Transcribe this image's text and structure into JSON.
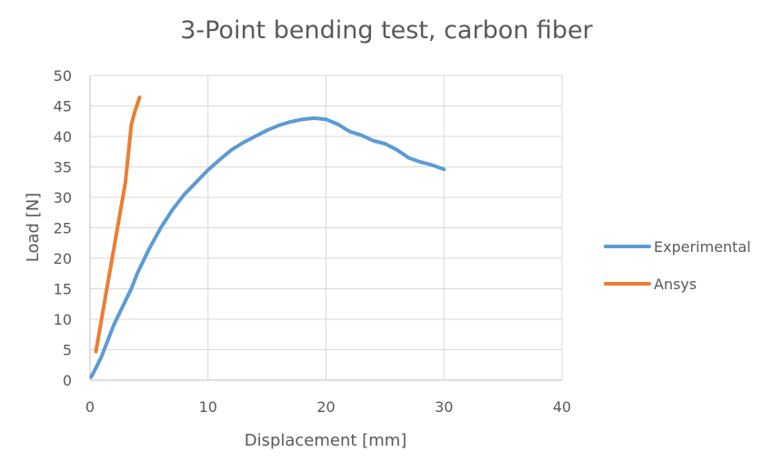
{
  "chart_data": {
    "type": "line",
    "title": "3-Point bending test, carbon fiber",
    "xlabel": "Displacement [mm]",
    "ylabel": "Load [N]",
    "xlim": [
      0,
      40
    ],
    "ylim": [
      0,
      50
    ],
    "x_ticks": [
      0,
      10,
      20,
      30,
      40
    ],
    "y_ticks": [
      0,
      5,
      10,
      15,
      20,
      25,
      30,
      35,
      40,
      45,
      50
    ],
    "grid": true,
    "legend_position": "right",
    "series": [
      {
        "name": "Experimental",
        "color": "#5b9bd5",
        "x": [
          0.1,
          0.5,
          1,
          1.5,
          2,
          2.5,
          3,
          3.5,
          4,
          5,
          6,
          7,
          8,
          9,
          10,
          11,
          12,
          13,
          14,
          15,
          16,
          17,
          18,
          19,
          20,
          21,
          22,
          23,
          24,
          25,
          26,
          27,
          28,
          29,
          30
        ],
        "y": [
          0.5,
          2,
          4,
          6.5,
          9,
          11,
          13,
          15,
          17.5,
          21.5,
          25,
          28,
          30.5,
          32.5,
          34.5,
          36.2,
          37.8,
          39,
          40,
          41,
          41.8,
          42.4,
          42.8,
          43,
          42.8,
          42,
          40.8,
          40.2,
          39.3,
          38.8,
          37.8,
          36.5,
          35.8,
          35.3,
          34.6
        ]
      },
      {
        "name": "Ansys",
        "color": "#ed7d31",
        "x": [
          0.5,
          1,
          1.5,
          2,
          2.5,
          3,
          3.5,
          3.8,
          4.2
        ],
        "y": [
          4.7,
          10.3,
          15.9,
          21.4,
          26.9,
          32.4,
          41.9,
          44.1,
          46.4
        ]
      }
    ]
  }
}
